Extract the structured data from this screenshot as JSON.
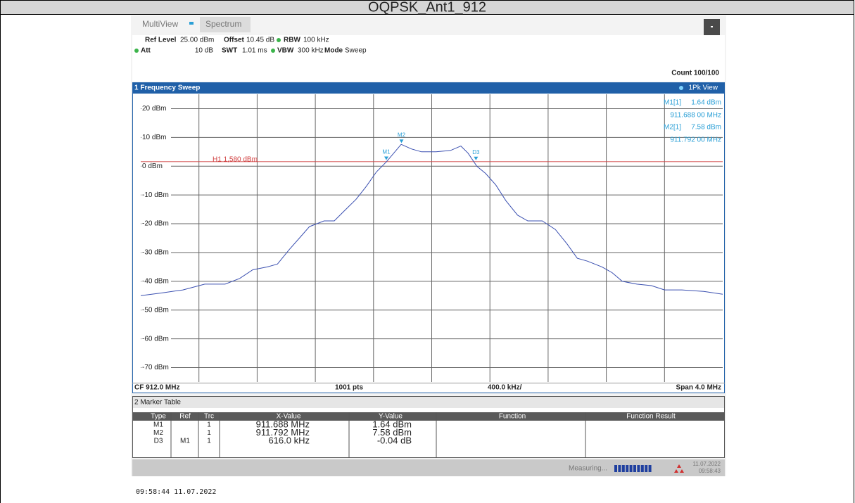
{
  "title": "OQPSK_Ant1_912",
  "tabs": [
    "MultiView",
    "Spectrum"
  ],
  "settings": {
    "ref_level_label": "Ref Level",
    "ref_level": "25.00 dBm",
    "offset_label": "Offset",
    "offset": "10.45 dB",
    "rbw_label": "RBW",
    "rbw": "100 kHz",
    "att_label": "Att",
    "att": "10 dB",
    "swt_label": "SWT",
    "swt": "1.01 ms",
    "vbw_label": "VBW",
    "vbw": "300 kHz",
    "mode_label": "Mode",
    "mode": "Sweep",
    "count": "Count 100/100"
  },
  "window_title": "1 Frequency Sweep",
  "chart_data": {
    "type": "line",
    "x": [
      910.0,
      910.15,
      910.29,
      910.44,
      910.58,
      910.68,
      910.77,
      910.87,
      910.94,
      911.02,
      911.09,
      911.16,
      911.26,
      911.33,
      911.4,
      911.48,
      911.55,
      911.62,
      911.69,
      911.79,
      911.86,
      911.93,
      912.03,
      912.13,
      912.2,
      912.25,
      912.31,
      912.37,
      912.44,
      912.51,
      912.59,
      912.66,
      912.76,
      912.85,
      912.93,
      913.0,
      913.07,
      913.17,
      913.24,
      913.31,
      913.41,
      913.51,
      913.6,
      913.72,
      913.87,
      914.0
    ],
    "series": [
      {
        "name": "1Pk View",
        "color": "#3a4fb0",
        "values": [
          -45,
          -44,
          -43,
          -41,
          -41,
          -39,
          -36,
          -35,
          -34,
          -29,
          -25,
          -21,
          -19,
          -19,
          -15.5,
          -11.5,
          -7,
          -2,
          1.6,
          7.6,
          6,
          5,
          5,
          5.5,
          7,
          4.5,
          0,
          -2.5,
          -6.5,
          -12,
          -17,
          -19,
          -19,
          -22,
          -27,
          -32,
          -33,
          -35,
          -37,
          -40,
          -41,
          -41.5,
          -43,
          -43,
          -43.5,
          -44.5
        ]
      }
    ],
    "xlim": [
      910,
      914
    ],
    "xticks": [
      910.4,
      910.8,
      911.2,
      911.6,
      912,
      912.4,
      912.8,
      913.2,
      913.6
    ],
    "ylim": [
      -75,
      25
    ],
    "yticks": [
      {
        "value": 20,
        "label": "20 dBm"
      },
      {
        "value": 10,
        "label": "10 dBm"
      },
      {
        "value": 0,
        "label": "0 dBm"
      },
      {
        "value": -10,
        "label": "-10 dBm"
      },
      {
        "value": -20,
        "label": "-20 dBm"
      },
      {
        "value": -30,
        "label": "-30 dBm"
      },
      {
        "value": -40,
        "label": "-40 dBm"
      },
      {
        "value": -50,
        "label": "-50 dBm"
      },
      {
        "value": -60,
        "label": "-60 dBm"
      },
      {
        "value": -70,
        "label": "-70 dBm"
      }
    ],
    "grid": true,
    "hline": {
      "label": "H1 1,580 dBm",
      "value": 1.58,
      "color": "#d04040"
    },
    "marker_color": "#2a9fd6",
    "markers": [
      {
        "label": "M1",
        "x": 911.688,
        "y": 1.64
      },
      {
        "label": "M2",
        "x": 911.792,
        "y": 7.58
      },
      {
        "label": "D3",
        "x": 912.304,
        "y": 1.6
      }
    ],
    "readout": [
      {
        "name": "M1[1]",
        "level": "1.64 dBm",
        "freq": "911.688 00 MHz"
      },
      {
        "name": "M2[1]",
        "level": "7.58 dBm",
        "freq": "911.792 00 MHz"
      }
    ],
    "footer": {
      "cf": "CF 912.0 MHz",
      "points": "1001 pts",
      "div": "400.0 kHz/",
      "span": "Span 4.0 MHz"
    }
  },
  "marker_table": {
    "title": "2 Marker Table",
    "columns": [
      "Type",
      "Ref",
      "Trc",
      "X-Value",
      "Y-Value",
      "Function",
      "Function Result"
    ],
    "rows": [
      {
        "type": "M1",
        "trc": "1",
        "x": "911.688 MHz",
        "y": "1.64 dBm"
      },
      {
        "type": "M2",
        "trc": "1",
        "x": "911.792 MHz",
        "y": "7.58 dBm"
      },
      {
        "type": "D3",
        "ref": "M1",
        "trc": "1",
        "x": "616.0 kHz",
        "y": "-0.04 dB"
      }
    ]
  },
  "status": {
    "measuring": "Measuring...",
    "date": "11.07.2022",
    "time": "09:58:43"
  },
  "timestamp": "09:58:44 11.07.2022"
}
